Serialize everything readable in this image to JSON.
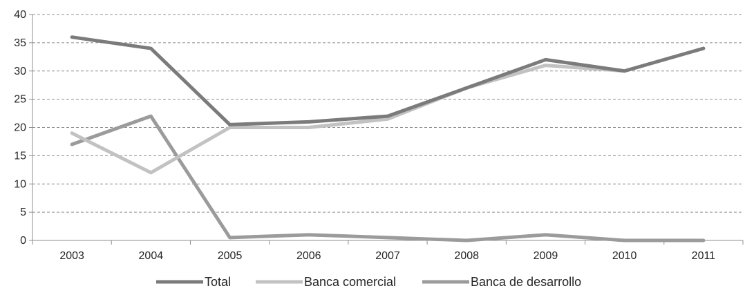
{
  "chart_data": {
    "type": "line",
    "title": "",
    "xlabel": "",
    "ylabel": "",
    "x": [
      "2003",
      "2004",
      "2005",
      "2006",
      "2007",
      "2008",
      "2009",
      "2010",
      "2011"
    ],
    "ylim": [
      0,
      40
    ],
    "yticks": [
      0,
      5,
      10,
      15,
      20,
      25,
      30,
      35,
      40
    ],
    "grid": "horizontal dashed",
    "legend_position": "bottom",
    "series": [
      {
        "name": "Total",
        "color": "#7b7b7b",
        "values": [
          36,
          34,
          20.5,
          21,
          22,
          27,
          32,
          30,
          34
        ]
      },
      {
        "name": "Banca comercial",
        "color": "#c2c2c2",
        "values": [
          19,
          12,
          20,
          20,
          21.5,
          27,
          31,
          30,
          34
        ]
      },
      {
        "name": "Banca de desarrollo",
        "color": "#9b9b9b",
        "values": [
          17,
          22,
          0.5,
          1,
          0.5,
          0,
          1,
          0,
          0
        ]
      }
    ]
  }
}
